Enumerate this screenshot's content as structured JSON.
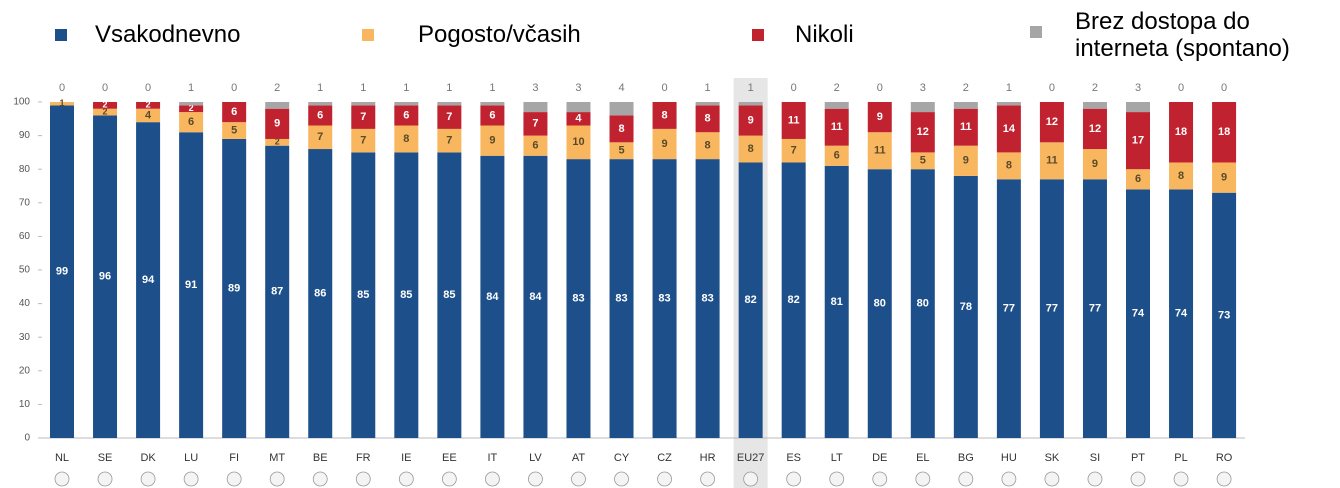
{
  "chart_data": {
    "type": "stacked_bar",
    "categories": [
      "NL",
      "SE",
      "DK",
      "LU",
      "FI",
      "MT",
      "BE",
      "FR",
      "IE",
      "EE",
      "IT",
      "LV",
      "AT",
      "CY",
      "CZ",
      "HR",
      "EU27",
      "ES",
      "LT",
      "DE",
      "EL",
      "BG",
      "HU",
      "SK",
      "SI",
      "PT",
      "PL",
      "RO"
    ],
    "series": [
      {
        "name": "Vsakodnevno",
        "color": "#1d4f8a",
        "values": [
          99,
          96,
          94,
          91,
          89,
          87,
          86,
          85,
          85,
          85,
          84,
          84,
          83,
          83,
          83,
          83,
          82,
          82,
          81,
          80,
          80,
          78,
          77,
          77,
          77,
          74,
          74,
          73
        ]
      },
      {
        "name": "Pogosto/včasih",
        "color": "#f8b75e",
        "values": [
          1,
          2,
          4,
          6,
          5,
          2,
          7,
          7,
          8,
          7,
          9,
          6,
          10,
          5,
          9,
          8,
          8,
          7,
          6,
          11,
          5,
          9,
          8,
          11,
          9,
          6,
          8,
          9
        ]
      },
      {
        "name": "Nikoli",
        "color": "#c0222f",
        "values": [
          0,
          2,
          2,
          2,
          6,
          9,
          6,
          7,
          6,
          7,
          6,
          7,
          4,
          8,
          8,
          8,
          9,
          11,
          11,
          9,
          12,
          11,
          14,
          12,
          12,
          17,
          18,
          18
        ]
      },
      {
        "name": "Brez dostopa do interneta (spontano)",
        "color": "#a6a6a6",
        "values": [
          0,
          0,
          0,
          1,
          0,
          2,
          1,
          1,
          1,
          1,
          1,
          3,
          3,
          4,
          0,
          1,
          1,
          0,
          2,
          0,
          3,
          2,
          1,
          0,
          2,
          3,
          0,
          0
        ]
      }
    ],
    "highlighted_category": 16,
    "ylim": [
      0,
      100
    ],
    "yticks": [
      0,
      10,
      20,
      30,
      40,
      50,
      60,
      70,
      80,
      90,
      100
    ]
  }
}
